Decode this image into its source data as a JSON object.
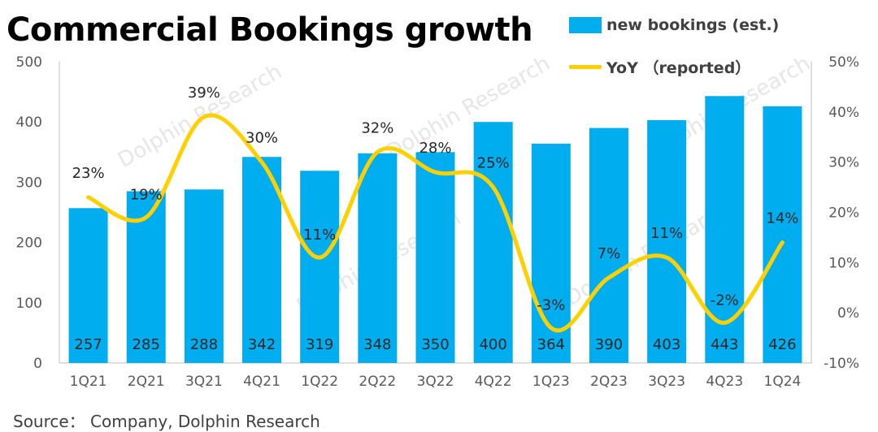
{
  "title": "Commercial Bookings growth",
  "source": "Source： Company, Dolphin Research",
  "watermark": "Dolphin Research",
  "colors": {
    "bar": "#00AEEF",
    "line": "#FFD000",
    "axis_text": "#595959",
    "label_text": "#404040"
  },
  "legend": {
    "bar_label": "new bookings (est.)",
    "line_label": "YoY （reported）",
    "position": "top-right"
  },
  "chart_data": {
    "type": "bar",
    "categories": [
      "1Q21",
      "2Q21",
      "3Q21",
      "4Q21",
      "1Q22",
      "2Q22",
      "3Q22",
      "4Q22",
      "1Q23",
      "2Q23",
      "3Q23",
      "4Q23",
      "1Q24"
    ],
    "series": [
      {
        "name": "new bookings (est.)",
        "type": "bar",
        "axis": "left",
        "values": [
          257,
          285,
          288,
          342,
          319,
          348,
          350,
          400,
          364,
          390,
          403,
          443,
          426
        ],
        "labels": [
          "257",
          "285",
          "288",
          "342",
          "319",
          "348",
          "350",
          "400",
          "364",
          "390",
          "403",
          "443",
          "426"
        ]
      },
      {
        "name": "YoY （reported）",
        "type": "line",
        "axis": "right",
        "smooth": true,
        "values": [
          23,
          19,
          39,
          30,
          11,
          32,
          28,
          25,
          -3,
          7,
          11,
          -2,
          14
        ],
        "labels": [
          "23%",
          "19%",
          "39%",
          "30%",
          "11%",
          "32%",
          "28%",
          "25%",
          "-3%",
          "7%",
          "11%",
          "-2%",
          "14%"
        ]
      }
    ],
    "y_left": {
      "min": 0,
      "max": 500,
      "ticks": [
        0,
        100,
        200,
        300,
        400,
        500
      ],
      "tick_labels": [
        "0",
        "100",
        "200",
        "300",
        "400",
        "500"
      ]
    },
    "y_right": {
      "min": -10,
      "max": 50,
      "ticks": [
        -10,
        0,
        10,
        20,
        30,
        40,
        50
      ],
      "tick_labels": [
        "-10%",
        "0%",
        "10%",
        "20%",
        "30%",
        "40%",
        "50%"
      ]
    },
    "grid": false
  }
}
